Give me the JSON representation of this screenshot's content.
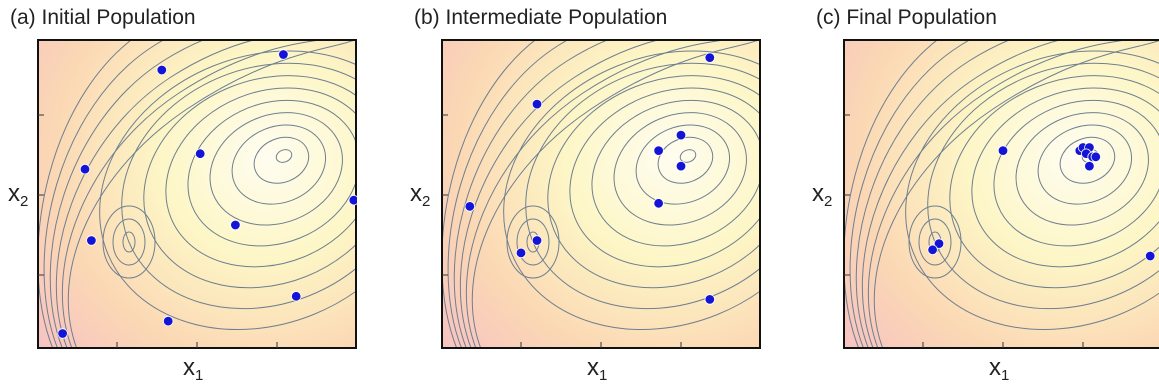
{
  "panels": [
    {
      "title": "(a) Initial Population",
      "x_label": "x",
      "x_sub": "1",
      "y_label": "x",
      "y_sub": "2",
      "points": [
        [
          0.39,
          0.1
        ],
        [
          0.77,
          0.05
        ],
        [
          0.15,
          0.42
        ],
        [
          0.51,
          0.37
        ],
        [
          0.99,
          0.52
        ],
        [
          0.17,
          0.65
        ],
        [
          0.62,
          0.6
        ],
        [
          0.81,
          0.83
        ],
        [
          0.41,
          0.91
        ],
        [
          0.08,
          0.95
        ]
      ]
    },
    {
      "title": "(b) Intermediate Population",
      "x_label": "x",
      "x_sub": "1",
      "y_label": "x",
      "y_sub": "2",
      "points": [
        [
          0.84,
          0.06
        ],
        [
          0.3,
          0.21
        ],
        [
          0.75,
          0.31
        ],
        [
          0.68,
          0.36
        ],
        [
          0.75,
          0.41
        ],
        [
          0.68,
          0.53
        ],
        [
          0.09,
          0.54
        ],
        [
          0.3,
          0.65
        ],
        [
          0.25,
          0.69
        ],
        [
          0.84,
          0.84
        ]
      ]
    },
    {
      "title": "(c) Final Population",
      "x_label": "x",
      "x_sub": "1",
      "y_label": "x",
      "y_sub": "2",
      "points": [
        [
          0.5,
          0.36
        ],
        [
          0.74,
          0.36
        ],
        [
          0.75,
          0.35
        ],
        [
          0.77,
          0.35
        ],
        [
          0.76,
          0.37
        ],
        [
          0.78,
          0.38
        ],
        [
          0.79,
          0.38
        ],
        [
          0.77,
          0.41
        ],
        [
          0.3,
          0.66
        ],
        [
          0.28,
          0.68
        ],
        [
          0.96,
          0.7
        ]
      ]
    }
  ]
}
